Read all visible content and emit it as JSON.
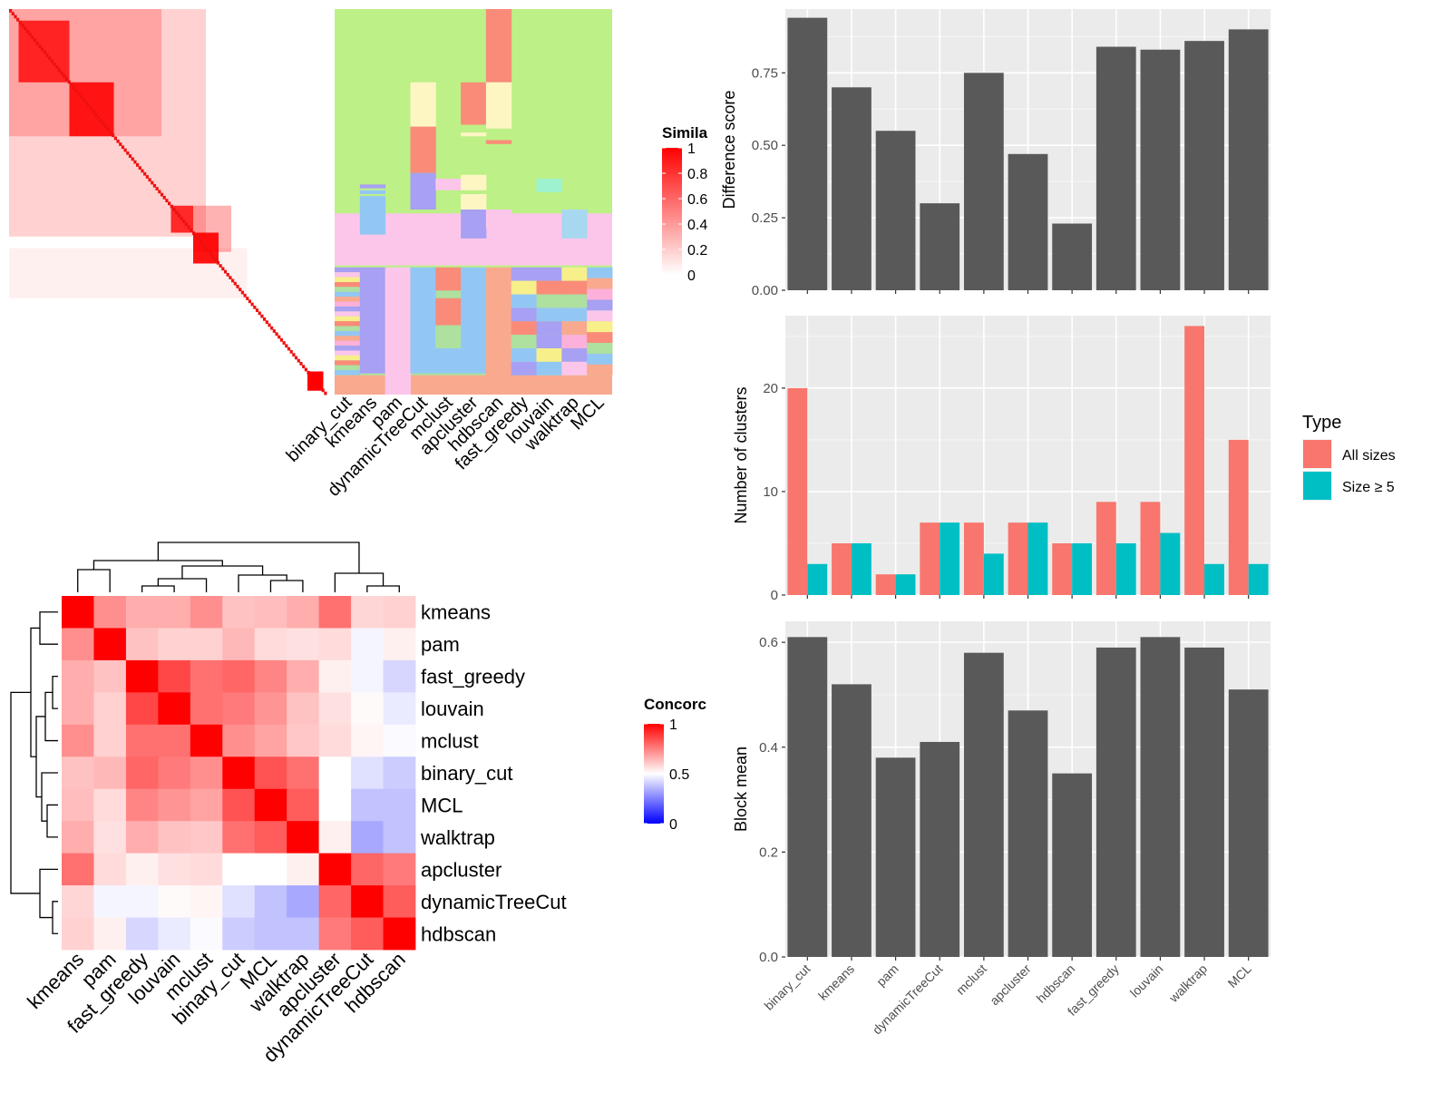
{
  "methods": [
    "binary_cut",
    "kmeans",
    "pam",
    "dynamicTreeCut",
    "mclust",
    "apcluster",
    "hdbscan",
    "fast_greedy",
    "louvain",
    "walktrap",
    "MCL"
  ],
  "chart_data": [
    {
      "type": "heatmap",
      "name": "similarity-matrix",
      "legend": {
        "title": "Similarity",
        "title_visible": "Simila",
        "ticks": [
          0,
          0.2,
          0.4,
          0.6,
          0.8,
          1
        ]
      },
      "colors": {
        "low": "#ffffff",
        "high": "#ff0000"
      },
      "blocks": [
        {
          "start": 0.03,
          "end": 0.19,
          "value": 0.78
        },
        {
          "start": 0.19,
          "end": 0.33,
          "value": 0.88
        },
        {
          "start": 0.51,
          "end": 0.58,
          "value": 0.8
        },
        {
          "start": 0.58,
          "end": 0.66,
          "value": 0.92
        }
      ]
    },
    {
      "type": "heatmap",
      "name": "cluster-labels",
      "columns": [
        "binary_cut",
        "kmeans",
        "pam",
        "dynamicTreeCut",
        "mclust",
        "apcluster",
        "hdbscan",
        "fast_greedy",
        "louvain",
        "walktrap",
        "MCL"
      ]
    },
    {
      "type": "bar",
      "name": "difference-score",
      "categories": [
        "binary_cut",
        "kmeans",
        "pam",
        "dynamicTreeCut",
        "mclust",
        "apcluster",
        "hdbscan",
        "fast_greedy",
        "louvain",
        "walktrap",
        "MCL"
      ],
      "values": [
        0.94,
        0.7,
        0.55,
        0.3,
        0.75,
        0.47,
        0.23,
        0.84,
        0.83,
        0.86,
        0.9
      ],
      "ylabel": "Difference score",
      "ylim": [
        0,
        0.97
      ],
      "yticks": [
        0.0,
        0.25,
        0.5,
        0.75
      ],
      "ytick_labels": [
        "0.00",
        "0.25",
        "0.50",
        "0.75"
      ],
      "grid": true,
      "colors": {
        "bar": "#595959",
        "panel": "#ebebeb"
      }
    },
    {
      "type": "bar",
      "name": "number-of-clusters",
      "categories": [
        "binary_cut",
        "kmeans",
        "pam",
        "dynamicTreeCut",
        "mclust",
        "apcluster",
        "hdbscan",
        "fast_greedy",
        "louvain",
        "walktrap",
        "MCL"
      ],
      "series": [
        {
          "name": "All sizes",
          "values": [
            20,
            5,
            2,
            7,
            7,
            7,
            5,
            9,
            9,
            26,
            15
          ],
          "color": "#f8766d"
        },
        {
          "name": "Size ≥ 5",
          "values": [
            3,
            5,
            2,
            7,
            4,
            7,
            5,
            5,
            6,
            3,
            3
          ],
          "color": "#00bfc4"
        }
      ],
      "ylabel": "Number of clusters",
      "ylim": [
        0,
        27
      ],
      "yticks": [
        0,
        10,
        20
      ],
      "ytick_labels": [
        "0",
        "10",
        "20"
      ],
      "legend": {
        "title": "Type",
        "position": "right"
      },
      "grid": true,
      "colors": {
        "panel": "#ebebeb"
      }
    },
    {
      "type": "bar",
      "name": "block-mean",
      "categories": [
        "binary_cut",
        "kmeans",
        "pam",
        "dynamicTreeCut",
        "mclust",
        "apcluster",
        "hdbscan",
        "fast_greedy",
        "louvain",
        "walktrap",
        "MCL"
      ],
      "values": [
        0.61,
        0.52,
        0.38,
        0.41,
        0.58,
        0.47,
        0.35,
        0.59,
        0.61,
        0.59,
        0.51
      ],
      "ylabel": "Block mean",
      "ylim": [
        0,
        0.64
      ],
      "yticks": [
        0.0,
        0.2,
        0.4,
        0.6
      ],
      "ytick_labels": [
        "0.0",
        "0.2",
        "0.4",
        "0.6"
      ],
      "grid": true,
      "colors": {
        "bar": "#595959",
        "panel": "#ebebeb"
      }
    },
    {
      "type": "heatmap",
      "name": "concordance",
      "rows": [
        "kmeans",
        "pam",
        "fast_greedy",
        "louvain",
        "mclust",
        "binary_cut",
        "MCL",
        "walktrap",
        "apcluster",
        "dynamicTreeCut",
        "hdbscan"
      ],
      "columns": [
        "kmeans",
        "pam",
        "fast_greedy",
        "louvain",
        "mclust",
        "binary_cut",
        "MCL",
        "walktrap",
        "apcluster",
        "dynamicTreeCut",
        "hdbscan"
      ],
      "values": [
        [
          1.0,
          0.72,
          0.66,
          0.66,
          0.72,
          0.62,
          0.63,
          0.66,
          0.78,
          0.58,
          0.59
        ],
        [
          0.72,
          1.0,
          0.62,
          0.59,
          0.59,
          0.64,
          0.57,
          0.56,
          0.57,
          0.48,
          0.53
        ],
        [
          0.66,
          0.62,
          1.0,
          0.86,
          0.78,
          0.8,
          0.74,
          0.66,
          0.53,
          0.48,
          0.42
        ],
        [
          0.66,
          0.59,
          0.86,
          1.0,
          0.78,
          0.76,
          0.71,
          0.62,
          0.56,
          0.51,
          0.46
        ],
        [
          0.72,
          0.59,
          0.78,
          0.78,
          1.0,
          0.72,
          0.68,
          0.61,
          0.57,
          0.52,
          0.49
        ],
        [
          0.62,
          0.64,
          0.8,
          0.76,
          0.72,
          1.0,
          0.84,
          0.78,
          0.5,
          0.44,
          0.4
        ],
        [
          0.63,
          0.57,
          0.74,
          0.71,
          0.68,
          0.84,
          1.0,
          0.82,
          0.5,
          0.38,
          0.38
        ],
        [
          0.66,
          0.56,
          0.66,
          0.62,
          0.61,
          0.78,
          0.82,
          1.0,
          0.53,
          0.33,
          0.38
        ],
        [
          0.78,
          0.57,
          0.53,
          0.56,
          0.57,
          0.5,
          0.5,
          0.53,
          1.0,
          0.8,
          0.76
        ],
        [
          0.58,
          0.48,
          0.48,
          0.51,
          0.52,
          0.44,
          0.38,
          0.33,
          0.8,
          1.0,
          0.82
        ],
        [
          0.59,
          0.53,
          0.42,
          0.46,
          0.49,
          0.4,
          0.38,
          0.38,
          0.76,
          0.82,
          1.0
        ]
      ],
      "legend": {
        "title": "Concordance",
        "title_visible": "Concorc",
        "ticks": [
          0,
          0.5,
          1
        ]
      },
      "colors": {
        "low": "#0000ff",
        "mid": "#ffffff",
        "high": "#ff0000"
      }
    }
  ]
}
